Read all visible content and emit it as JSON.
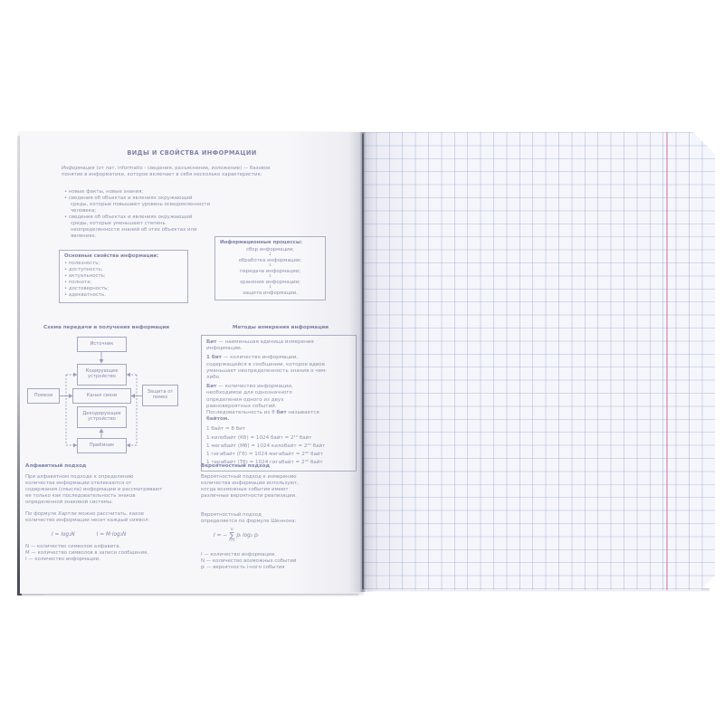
{
  "icons": {
    "down_arrow": "↓",
    "bullet": "•"
  },
  "colors": {
    "ink": "#8b91b0",
    "ink_bold": "#7d84a9",
    "box_border": "#a9aec6",
    "grid_line": "#8094ca",
    "margin_line": "#d0809e",
    "paper": "#f6f6fa",
    "cover_edge": "#3d3f4a"
  },
  "left_page": {
    "title": "ВИДЫ И СВОЙСТВА ИНФОРМАЦИИ",
    "intro": [
      {
        "t": "Информация",
        "i": true
      },
      {
        "t": " (от лат. informatio - сведения, разъяснение, изложение) — базовое понятие в информатике, которое включает в себя несколько характеристик:"
      }
    ],
    "bullets": [
      "новые факты, новые знания;",
      "сведения об объектах и явлениях окружающей среды, которые повышают уровень осведомленности человека;",
      "сведения об объектах и явлениях окружающей среды, которые уменьшают степень неопределенности знаний об этих объектах или явлениях."
    ],
    "properties_box": {
      "title": "Основные свойства информации:",
      "items": [
        "полезность;",
        "доступность;",
        "актуальность;",
        "полнота;",
        "достоверность;",
        "адекватность."
      ]
    },
    "processes_box": {
      "title": "Информационные процессы:",
      "steps": [
        "сбор информации;",
        "обработка информации;",
        "передача информации;",
        "хранение информации;",
        "защита информации."
      ]
    },
    "scheme": {
      "title": "Схема передачи и получения информации",
      "nodes": {
        "source": "Источник",
        "coder": "Кодирующее устройство",
        "channel": "Канал связи",
        "decoder": "Декодирующее устройство",
        "receiver": "Приёмник",
        "noise": "Помехи",
        "protection": "Защита от помех"
      }
    },
    "measurement": {
      "title": "Методы измерения информации",
      "paragraphs": [
        [
          {
            "t": "Бит",
            "b": true
          },
          {
            "t": " — наименьшая единица измерения информации."
          }
        ],
        [
          {
            "t": "1 бит",
            "b": true
          },
          {
            "t": " — количество информации, содержащейся в сообщении, которое вдвое уменьшает неопределенность знания о чем-либо."
          }
        ],
        [
          {
            "t": "Бит",
            "b": true
          },
          {
            "t": " — количество информации, необходимое для однозначного определения одного из двух равновероятных событий. Последовательность из 8 "
          },
          {
            "t": "бит",
            "b": true
          },
          {
            "t": " называется "
          },
          {
            "t": "байтом.",
            "b": true
          }
        ]
      ],
      "conversions": [
        "1 байт = 8 бит",
        "1 килобайт (Кб) = 1024 байт = 2¹⁰ байт",
        "1 мегабайт (Мб) = 1024 килобайт = 2²⁰ байт",
        "1 гигабайт (Гб) = 1024 мегабайт = 2³⁰ байт",
        "1 терабайт (Тб) = 1024 гигабайт = 2⁴⁰ байт"
      ]
    },
    "alphabet": {
      "title": "Алфавитный подход",
      "p1": "При алфавитном подходе к определению количества информации отвлекаются от содержания (смысла) информации и рассматривают ее только как последовательность знаков определенной знаковой системы.",
      "p2": [
        {
          "t": "По формуле "
        },
        {
          "t": "Хартли",
          "i": true
        },
        {
          "t": " можно рассчитать, какое количество информации несет каждый символ:"
        }
      ],
      "formula1": "I = log₂N",
      "formula2": "I = M·log₂N",
      "defs": [
        "N — количество символов алфавита.",
        "M — количество символов в записи сообщения.",
        "I — количество информации."
      ]
    },
    "probability": {
      "title": "Вероятностный подход",
      "p1": "Вероятностный подход к измерению количества информации используют, когда возможные события имеют различные вероятности реализации.",
      "p2": "Вероятностный подход определяется по формуле Шеннона:",
      "formula": {
        "lhs": "I = −",
        "sum": "∑",
        "top": "N",
        "bottom": "i=1",
        "rhs": "pᵢ log₂ pᵢ"
      },
      "defs": [
        "I — количество информации.",
        "N — количество возможных событий",
        "pᵢ — вероятность i-ного события"
      ]
    }
  }
}
